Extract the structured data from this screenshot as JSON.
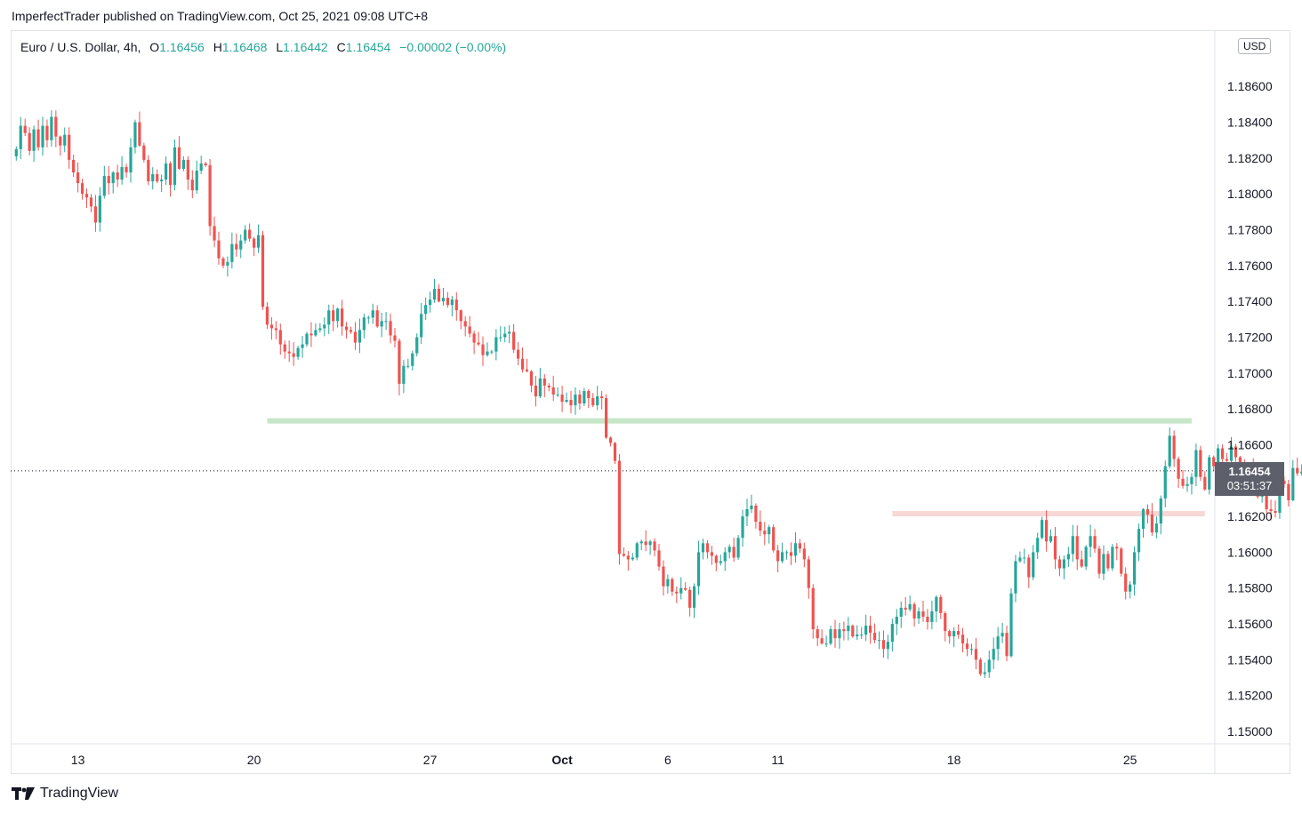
{
  "publisher": "ImperfectTrader published on TradingView.com, Oct 25, 2021 09:08 UTC+8",
  "legend": {
    "symbol": "Euro / U.S. Dollar, 4h,",
    "o_label": "O",
    "o": "1.16456",
    "h_label": "H",
    "h": "1.16468",
    "l_label": "L",
    "l": "1.16442",
    "c_label": "C",
    "c": "1.16454",
    "change": "−0.00002 (−0.00%)"
  },
  "currency": "USD",
  "last_price": "1.16454",
  "countdown": "03:51:37",
  "logo_text": "TradingView",
  "colors": {
    "up": "#26a69a",
    "down": "#ef5350",
    "resistance": "#c8e6c9",
    "support": "#f8d7d7"
  },
  "chart_data": {
    "type": "candlestick",
    "timeframe": "4h",
    "ylim": [
      1.1495,
      1.1885
    ],
    "y_ticks": [
      "1.18600",
      "1.18400",
      "1.18200",
      "1.18000",
      "1.17800",
      "1.17600",
      "1.17400",
      "1.17200",
      "1.17000",
      "1.16800",
      "1.16600",
      "1.16200",
      "1.16000",
      "1.15800",
      "1.15600",
      "1.15400",
      "1.15200",
      "1.15000"
    ],
    "x_ticks": [
      {
        "label": "13",
        "index": 14,
        "bold": false
      },
      {
        "label": "20",
        "index": 54,
        "bold": false
      },
      {
        "label": "27",
        "index": 94,
        "bold": false
      },
      {
        "label": "Oct",
        "index": 124,
        "bold": true
      },
      {
        "label": "6",
        "index": 148,
        "bold": false
      },
      {
        "label": "11",
        "index": 173,
        "bold": false
      },
      {
        "label": "18",
        "index": 213,
        "bold": false
      },
      {
        "label": "25",
        "index": 253,
        "bold": false
      }
    ],
    "levels": [
      {
        "name": "resistance",
        "value": 1.16733,
        "from_index": 57,
        "to_index": 267
      },
      {
        "name": "support",
        "value": 1.16215,
        "from_index": 199,
        "to_index": 270
      }
    ],
    "last_close": 1.16454,
    "closes": [
      1.1825,
      1.1838,
      1.1834,
      1.1824,
      1.1836,
      1.1826,
      1.1838,
      1.183,
      1.1843,
      1.1832,
      1.1827,
      1.1833,
      1.1819,
      1.1812,
      1.1806,
      1.18,
      1.1798,
      1.1793,
      1.1784,
      1.1799,
      1.181,
      1.1806,
      1.1812,
      1.1808,
      1.1815,
      1.1812,
      1.1826,
      1.184,
      1.1827,
      1.1819,
      1.1807,
      1.1811,
      1.1807,
      1.1808,
      1.1817,
      1.1805,
      1.1826,
      1.1814,
      1.1819,
      1.1808,
      1.1802,
      1.1813,
      1.1817,
      1.1816,
      1.1782,
      1.1774,
      1.1764,
      1.176,
      1.1762,
      1.1772,
      1.1769,
      1.1774,
      1.178,
      1.1775,
      1.177,
      1.1777,
      1.1737,
      1.1727,
      1.1725,
      1.1724,
      1.1716,
      1.1712,
      1.1711,
      1.1709,
      1.1714,
      1.1716,
      1.1722,
      1.1721,
      1.1724,
      1.1725,
      1.1727,
      1.1735,
      1.1729,
      1.1736,
      1.1726,
      1.1724,
      1.1723,
      1.1717,
      1.1724,
      1.1731,
      1.1731,
      1.1735,
      1.1726,
      1.1729,
      1.1729,
      1.1721,
      1.1718,
      1.1694,
      1.1704,
      1.1704,
      1.1711,
      1.172,
      1.1733,
      1.1738,
      1.1741,
      1.1747,
      1.174,
      1.1742,
      1.1738,
      1.1741,
      1.1735,
      1.1729,
      1.1726,
      1.1722,
      1.1717,
      1.1716,
      1.171,
      1.1712,
      1.1712,
      1.172,
      1.172,
      1.1722,
      1.1723,
      1.1713,
      1.1708,
      1.1702,
      1.1701,
      1.1693,
      1.1687,
      1.1697,
      1.1693,
      1.1692,
      1.1688,
      1.1688,
      1.1684,
      1.1685,
      1.1682,
      1.1688,
      1.1683,
      1.169,
      1.1686,
      1.1682,
      1.1687,
      1.1686,
      1.1664,
      1.1661,
      1.1651,
      1.1599,
      1.1598,
      1.1596,
      1.1597,
      1.1605,
      1.1606,
      1.1604,
      1.1606,
      1.1601,
      1.1592,
      1.1581,
      1.1585,
      1.1578,
      1.1577,
      1.158,
      1.1579,
      1.1569,
      1.1581,
      1.16,
      1.1605,
      1.16,
      1.1598,
      1.1594,
      1.1595,
      1.16,
      1.1603,
      1.1597,
      1.1608,
      1.162,
      1.1624,
      1.1626,
      1.1617,
      1.1612,
      1.161,
      1.1614,
      1.1601,
      1.1595,
      1.16,
      1.16,
      1.1598,
      1.1605,
      1.1602,
      1.1596,
      1.158,
      1.1557,
      1.1552,
      1.1549,
      1.1549,
      1.1557,
      1.1552,
      1.1557,
      1.1556,
      1.1559,
      1.1553,
      1.1554,
      1.1554,
      1.1559,
      1.1555,
      1.1551,
      1.1551,
      1.1546,
      1.155,
      1.156,
      1.1564,
      1.1569,
      1.1568,
      1.1571,
      1.1563,
      1.1567,
      1.1564,
      1.1561,
      1.1567,
      1.1575,
      1.1566,
      1.1556,
      1.1553,
      1.1556,
      1.1554,
      1.1549,
      1.1546,
      1.1546,
      1.154,
      1.1532,
      1.1533,
      1.154,
      1.1546,
      1.1553,
      1.1555,
      1.1542,
      1.1577,
      1.1595,
      1.1597,
      1.1597,
      1.1586,
      1.16,
      1.1608,
      1.1618,
      1.1606,
      1.1609,
      1.1596,
      1.1591,
      1.1596,
      1.1599,
      1.1609,
      1.1596,
      1.1592,
      1.1603,
      1.1609,
      1.1602,
      1.1588,
      1.1599,
      1.1591,
      1.1603,
      1.1602,
      1.1588,
      1.1578,
      1.1582,
      1.16,
      1.1613,
      1.1624,
      1.1621,
      1.1611,
      1.1616,
      1.163,
      1.1648,
      1.1665,
      1.1652,
      1.1641,
      1.1637,
      1.1638,
      1.1642,
      1.1657,
      1.1642,
      1.1635,
      1.1653,
      1.1648,
      1.1658,
      1.1652,
      1.1651,
      1.1659,
      1.1653,
      1.1648,
      1.1637,
      1.1646,
      1.1637,
      1.1631,
      1.1632,
      1.1624,
      1.1623,
      1.1622,
      1.164,
      1.1638,
      1.1629,
      1.1647,
      1.1644,
      1.1645,
      1.1645
    ]
  }
}
